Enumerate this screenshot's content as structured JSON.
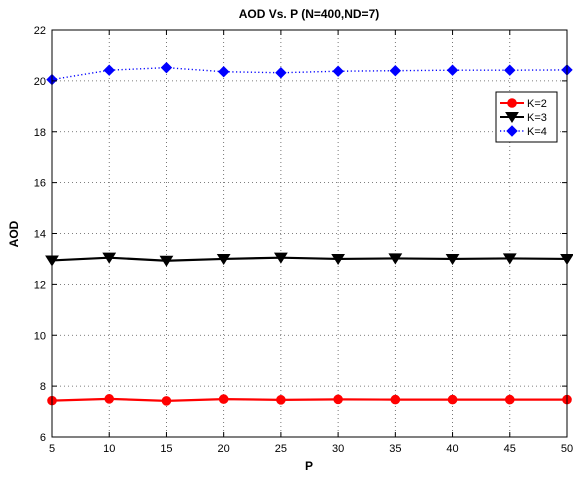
{
  "chart_data": {
    "type": "line",
    "title": "AOD Vs. P (N=400,ND=7)",
    "xlabel": "P",
    "ylabel": "AOD",
    "x": [
      5,
      10,
      15,
      20,
      25,
      30,
      35,
      40,
      45,
      50
    ],
    "xlim": [
      5,
      50
    ],
    "ylim": [
      6,
      22
    ],
    "xticks": [
      "5",
      "10",
      "15",
      "20",
      "25",
      "30",
      "35",
      "40",
      "45",
      "50"
    ],
    "yticks": [
      "6",
      "8",
      "10",
      "12",
      "14",
      "16",
      "18",
      "20",
      "22"
    ],
    "grid": true,
    "legend_position": "top-right",
    "series": [
      {
        "name": "K=2",
        "values": [
          7.43,
          7.5,
          7.42,
          7.49,
          7.46,
          7.48,
          7.47,
          7.47,
          7.47,
          7.47
        ],
        "color": "#ff0000",
        "marker": "circle",
        "line_style": "solid"
      },
      {
        "name": "K=3",
        "values": [
          12.94,
          13.05,
          12.93,
          13.0,
          13.05,
          13.0,
          13.02,
          13.0,
          13.02,
          13.0
        ],
        "color": "#000000",
        "marker": "triangle-down",
        "line_style": "solid"
      },
      {
        "name": "K=4",
        "values": [
          20.05,
          20.42,
          20.52,
          20.36,
          20.32,
          20.38,
          20.4,
          20.42,
          20.42,
          20.43
        ],
        "color": "#0000ff",
        "marker": "diamond",
        "line_style": "dotted"
      }
    ]
  }
}
